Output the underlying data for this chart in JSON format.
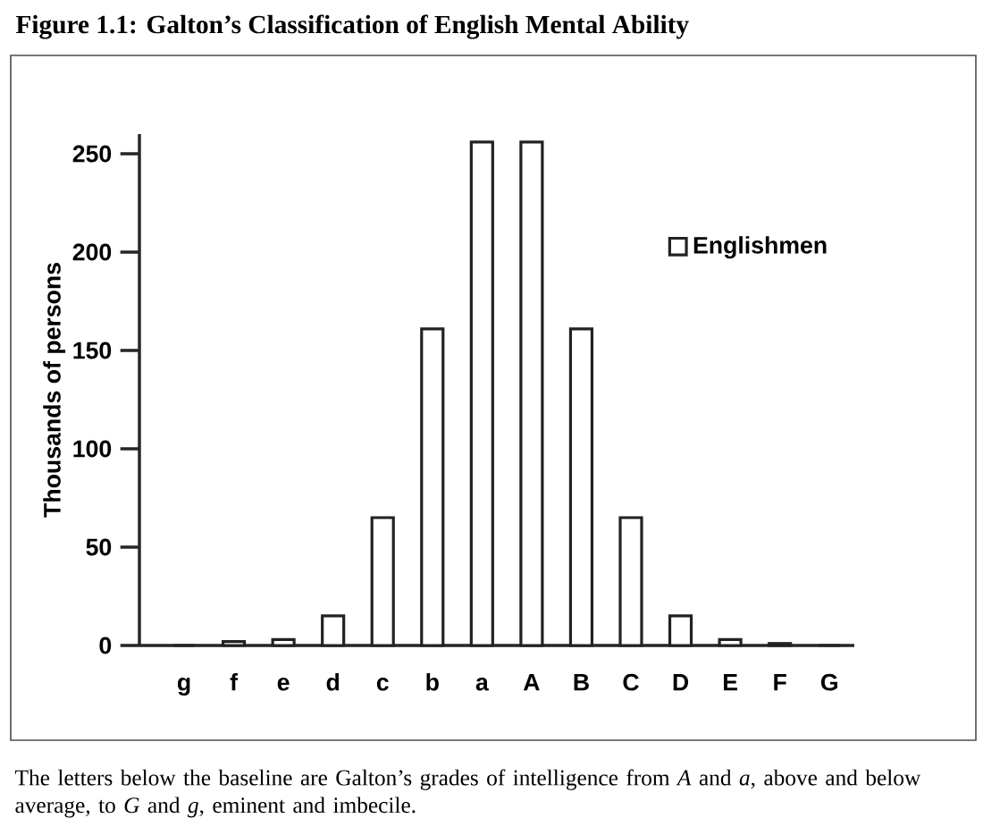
{
  "chart_data": {
    "type": "bar",
    "title": "Figure 1.1: Galton’s Classification of English Mental Ability",
    "ylabel": "Thousands of persons",
    "categories": [
      "g",
      "f",
      "e",
      "d",
      "c",
      "b",
      "a",
      "A",
      "B",
      "C",
      "D",
      "E",
      "F",
      "G"
    ],
    "series": [
      {
        "name": "Englishmen",
        "color": "#222222",
        "values": [
          0,
          2,
          3,
          15,
          65,
          161,
          256,
          256,
          161,
          65,
          15,
          3,
          1,
          0
        ]
      }
    ],
    "ylim": [
      0,
      260
    ],
    "yticks": [
      0,
      50,
      100,
      150,
      200,
      250
    ],
    "legend": "top right",
    "grid": false,
    "annotations": [
      "The letters below the baseline are Galton’s grades of intelligence from *A* and *a*, above and below average, to *G* and *g*, eminent and imbecile."
    ]
  }
}
